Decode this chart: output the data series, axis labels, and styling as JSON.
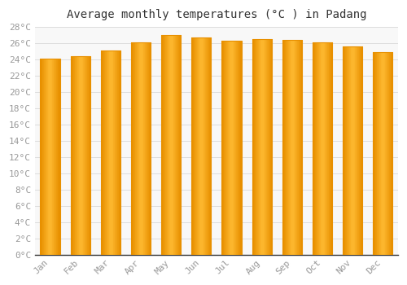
{
  "months": [
    "Jan",
    "Feb",
    "Mar",
    "Apr",
    "May",
    "Jun",
    "Jul",
    "Aug",
    "Sep",
    "Oct",
    "Nov",
    "Dec"
  ],
  "values": [
    24.1,
    24.4,
    25.1,
    26.1,
    27.0,
    26.7,
    26.3,
    26.5,
    26.4,
    26.1,
    25.6,
    24.9
  ],
  "title": "Average monthly temperatures (°C ) in Padang",
  "ylim": [
    0,
    28
  ],
  "ytick_step": 2,
  "bar_color_center": "#FFBB33",
  "bar_color_edge": "#E89000",
  "background_color": "#FFFFFF",
  "plot_bg_color": "#F8F8F8",
  "grid_color": "#DDDDDD",
  "title_fontsize": 10,
  "tick_fontsize": 8,
  "tick_color": "#999999",
  "title_font": "monospace"
}
